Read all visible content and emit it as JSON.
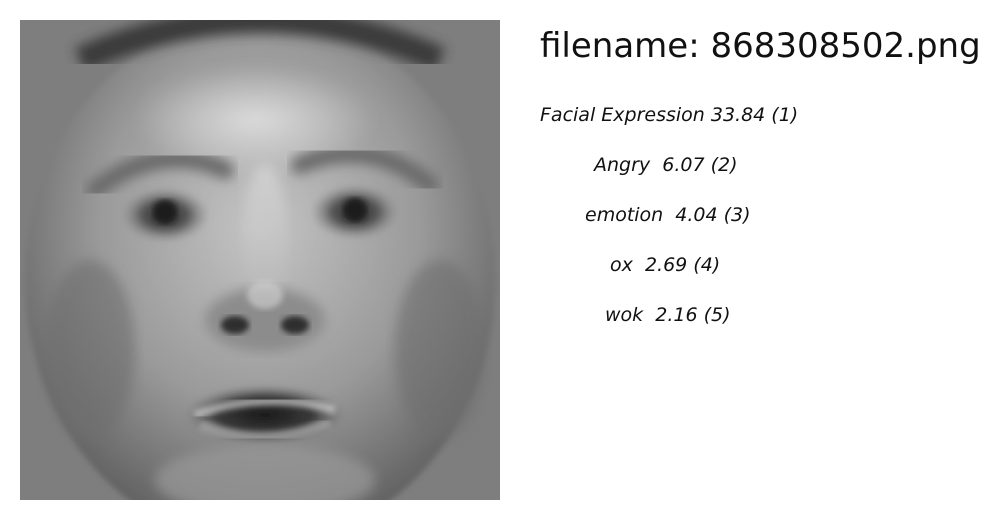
{
  "filename_label": "filename: 868308502.png",
  "predictions": [
    "Facial Expression 33.84 (1)",
    "Angry  6.07 (2)",
    "emotion  4.04 (3)",
    "ox  2.69 (4)",
    "wok  2.16 (5)"
  ]
}
